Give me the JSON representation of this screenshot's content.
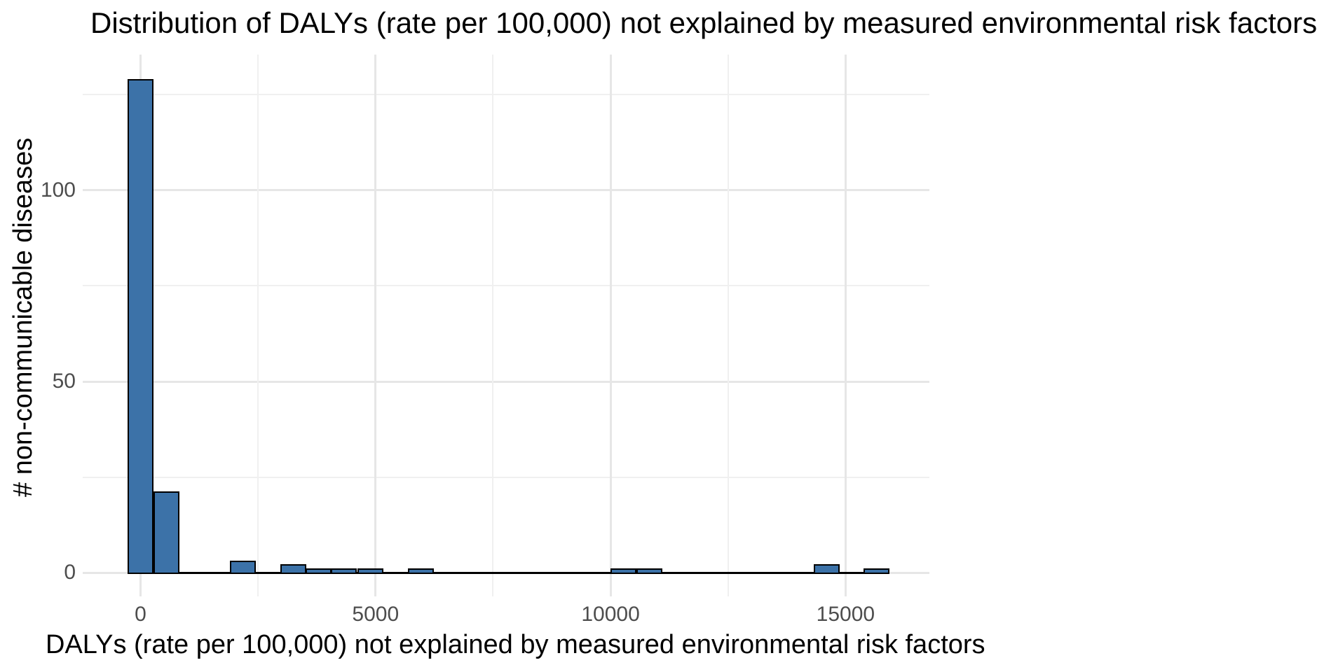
{
  "title": "Distribution of DALYs (rate per 100,000) not explained by measured environmental risk factors",
  "chart_data": {
    "type": "bar",
    "subtype": "histogram",
    "title": "Distribution of DALYs (rate per 100,000) not explained by measured environmental risk factors",
    "xlabel": "DALYs (rate per 100,000) not explained by measured environmental risk factors",
    "ylabel": "# non-communicable diseases",
    "bin_width": 550,
    "bins": [
      {
        "center": 0,
        "count": 129
      },
      {
        "center": 550,
        "count": 21
      },
      {
        "center": 2180,
        "count": 3
      },
      {
        "center": 3250,
        "count": 2
      },
      {
        "center": 3790,
        "count": 1
      },
      {
        "center": 4320,
        "count": 1
      },
      {
        "center": 4890,
        "count": 1
      },
      {
        "center": 5960,
        "count": 1
      },
      {
        "center": 10270,
        "count": 1
      },
      {
        "center": 10830,
        "count": 1
      },
      {
        "center": 14600,
        "count": 2
      },
      {
        "center": 15660,
        "count": 1
      }
    ],
    "zero_line_extent": [
      -275,
      15935
    ],
    "x_ticks": [
      0,
      5000,
      10000,
      15000
    ],
    "x_minor_gridlines": [
      2500,
      7500,
      12500
    ],
    "y_ticks": [
      0,
      50,
      100
    ],
    "y_minor_gridlines": [
      25,
      75,
      125
    ],
    "xlim": [
      -1230,
      16784
    ],
    "ylim": [
      -6.2,
      135.5
    ],
    "grid": "major+minor, light gray on white, no axis lines, no tick marks",
    "legend": false,
    "colors": {
      "bar_fill": "#3C72A8",
      "bar_outline": "#000000",
      "grid_major": "#E6E6E6",
      "grid_minor": "#F0F0F0",
      "tick_text": "#4D4D4D",
      "title_text": "#000000"
    }
  }
}
